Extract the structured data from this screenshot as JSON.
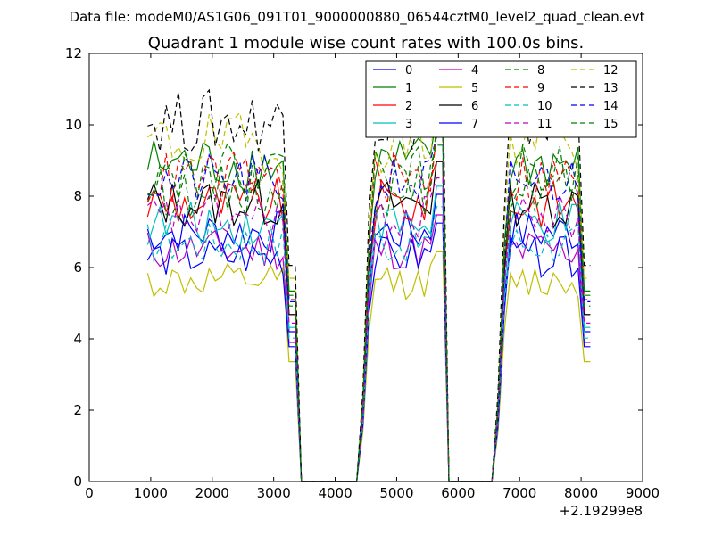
{
  "header": {
    "data_file": "Data file: modeM0/AS1G06_091T01_9000000880_06544cztM0_level2_quad_clean.evt"
  },
  "chart_data": {
    "type": "line",
    "title": "Quadrant 1 module wise count rates with 100.0s bins.",
    "xlabel": "",
    "ylabel": "",
    "x_offset_label": "+2.19299e8",
    "xlim": [
      0,
      9000
    ],
    "ylim": [
      0,
      12
    ],
    "x_ticks": [
      0,
      1000,
      2000,
      3000,
      4000,
      5000,
      6000,
      7000,
      8000,
      9000
    ],
    "y_ticks": [
      0,
      2,
      4,
      6,
      8,
      10,
      12
    ],
    "grid": false,
    "legend_placement": "top-right",
    "legend_columns": 4,
    "x_segments": [
      {
        "start": 950,
        "end": 3350
      },
      {
        "start": 3450,
        "end": 4350
      },
      {
        "start": 4450,
        "end": 5750
      },
      {
        "start": 5850,
        "end": 6550
      },
      {
        "start": 6650,
        "end": 8150
      }
    ],
    "series": [
      {
        "name": "0",
        "color": "#0000ff",
        "dashed": false,
        "levels": [
          7.0,
          0,
          7.0,
          0,
          7.0
        ]
      },
      {
        "name": "1",
        "color": "#008000",
        "dashed": false,
        "levels": [
          8.9,
          0,
          8.9,
          0,
          8.9
        ]
      },
      {
        "name": "2",
        "color": "#ff0000",
        "dashed": false,
        "levels": [
          7.8,
          0,
          7.8,
          0,
          7.8
        ]
      },
      {
        "name": "3",
        "color": "#00bfbf",
        "dashed": false,
        "levels": [
          7.2,
          0,
          7.2,
          0,
          7.2
        ]
      },
      {
        "name": "4",
        "color": "#bf00bf",
        "dashed": false,
        "levels": [
          6.5,
          0,
          6.5,
          0,
          6.5
        ]
      },
      {
        "name": "5",
        "color": "#bfbf00",
        "dashed": false,
        "levels": [
          5.6,
          0,
          5.6,
          0,
          5.6
        ]
      },
      {
        "name": "6",
        "color": "#000000",
        "dashed": false,
        "levels": [
          7.8,
          0,
          7.8,
          0,
          7.8
        ]
      },
      {
        "name": "7",
        "color": "#0000ff",
        "dashed": false,
        "levels": [
          6.3,
          0,
          6.3,
          0,
          6.3
        ]
      },
      {
        "name": "8",
        "color": "#008000",
        "dashed": true,
        "levels": [
          8.2,
          0,
          8.2,
          0,
          8.2
        ]
      },
      {
        "name": "9",
        "color": "#ff0000",
        "dashed": true,
        "levels": [
          8.5,
          0,
          8.5,
          0,
          8.5
        ]
      },
      {
        "name": "10",
        "color": "#00bfbf",
        "dashed": true,
        "levels": [
          6.7,
          0,
          6.7,
          0,
          6.7
        ]
      },
      {
        "name": "11",
        "color": "#bf00bf",
        "dashed": true,
        "levels": [
          7.4,
          0,
          7.4,
          0,
          7.4
        ]
      },
      {
        "name": "12",
        "color": "#bfbf00",
        "dashed": true,
        "levels": [
          9.5,
          0,
          9.5,
          0,
          9.5
        ]
      },
      {
        "name": "13",
        "color": "#000000",
        "dashed": true,
        "levels": [
          10.1,
          0,
          10.1,
          0,
          10.1
        ]
      },
      {
        "name": "14",
        "color": "#0000ff",
        "dashed": true,
        "levels": [
          8.4,
          0,
          8.4,
          0,
          8.4
        ]
      },
      {
        "name": "15",
        "color": "#008000",
        "dashed": true,
        "levels": [
          8.7,
          0,
          8.7,
          0,
          8.7
        ]
      }
    ]
  }
}
